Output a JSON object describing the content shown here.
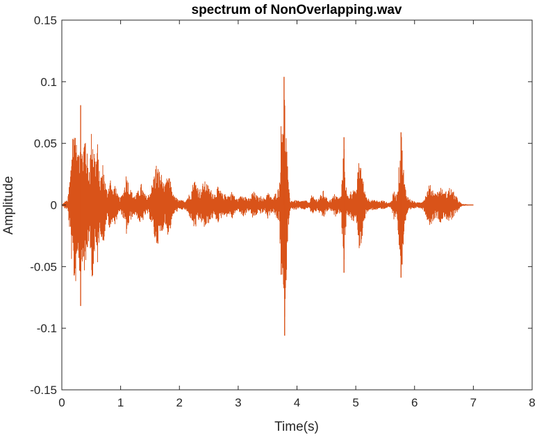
{
  "chart_data": {
    "type": "line",
    "title": "spectrum of NonOverlapping.wav",
    "xlabel": "Time(s)",
    "ylabel": "Amplitude",
    "xlim": [
      0,
      8
    ],
    "ylim": [
      -0.15,
      0.15
    ],
    "x_ticks": [
      "0",
      "1",
      "2",
      "3",
      "4",
      "5",
      "6",
      "7",
      "8"
    ],
    "y_ticks": [
      "0.15",
      "0.1",
      "0.05",
      "0",
      "-0.05",
      "-0.1",
      "-0.15"
    ],
    "x_tick_values": [
      0,
      1,
      2,
      3,
      4,
      5,
      6,
      7,
      8
    ],
    "y_tick_values": [
      0.15,
      0.1,
      0.05,
      0,
      -0.05,
      -0.1,
      -0.15
    ],
    "grid": false,
    "series": [
      {
        "color": "#D95319",
        "envelope": {
          "t": [
            0,
            0.05,
            0.1,
            0.15,
            0.18,
            0.2,
            0.22,
            0.25,
            0.28,
            0.3,
            0.32,
            0.35,
            0.38,
            0.4,
            0.42,
            0.45,
            0.48,
            0.5,
            0.52,
            0.55,
            0.58,
            0.6,
            0.62,
            0.65,
            0.68,
            0.7,
            0.72,
            0.75,
            0.78,
            0.8,
            0.82,
            0.85,
            0.88,
            0.9,
            0.95,
            1.0,
            1.05,
            1.1,
            1.15,
            1.2,
            1.25,
            1.3,
            1.35,
            1.4,
            1.45,
            1.5,
            1.55,
            1.6,
            1.65,
            1.7,
            1.75,
            1.8,
            1.85,
            1.9,
            2.0,
            2.1,
            2.2,
            2.25,
            2.3,
            2.35,
            2.4,
            2.45,
            2.5,
            2.55,
            2.6,
            2.65,
            2.7,
            2.75,
            2.8,
            2.85,
            2.9,
            2.95,
            3.0,
            3.05,
            3.1,
            3.15,
            3.2,
            3.25,
            3.3,
            3.35,
            3.4,
            3.45,
            3.5,
            3.55,
            3.6,
            3.65,
            3.7,
            3.73,
            3.76,
            3.78,
            3.8,
            3.82,
            3.85,
            3.88,
            3.9,
            3.95,
            4.0,
            4.05,
            4.1,
            4.15,
            4.2,
            4.25,
            4.3,
            4.35,
            4.4,
            4.45,
            4.5,
            4.55,
            4.6,
            4.65,
            4.7,
            4.75,
            4.78,
            4.8,
            4.82,
            4.85,
            4.9,
            4.95,
            5.0,
            5.02,
            5.05,
            5.08,
            5.1,
            5.15,
            5.2,
            5.25,
            5.3,
            5.35,
            5.4,
            5.45,
            5.5,
            5.55,
            5.6,
            5.65,
            5.7,
            5.73,
            5.76,
            5.78,
            5.8,
            5.83,
            5.86,
            5.9,
            5.95,
            6.0,
            6.05,
            6.1,
            6.15,
            6.2,
            6.25,
            6.3,
            6.35,
            6.4,
            6.45,
            6.5,
            6.55,
            6.6,
            6.65,
            6.7,
            6.75,
            6.8,
            6.9,
            7.0
          ],
          "max": [
            0.0,
            0.003,
            0.004,
            0.03,
            0.07,
            0.06,
            0.08,
            0.05,
            0.04,
            0.06,
            0.07,
            0.045,
            0.06,
            0.065,
            0.05,
            0.03,
            0.04,
            0.06,
            0.065,
            0.05,
            0.035,
            0.06,
            0.04,
            0.02,
            0.03,
            0.035,
            0.028,
            0.015,
            0.012,
            0.018,
            0.025,
            0.015,
            0.01,
            0.02,
            0.008,
            0.006,
            0.012,
            0.028,
            0.015,
            0.01,
            0.008,
            0.012,
            0.018,
            0.01,
            0.007,
            0.012,
            0.02,
            0.035,
            0.03,
            0.025,
            0.015,
            0.025,
            0.02,
            0.008,
            0.004,
            0.004,
            0.012,
            0.022,
            0.018,
            0.012,
            0.018,
            0.02,
            0.015,
            0.012,
            0.01,
            0.015,
            0.012,
            0.008,
            0.01,
            0.008,
            0.012,
            0.006,
            0.005,
            0.008,
            0.01,
            0.006,
            0.005,
            0.012,
            0.009,
            0.006,
            0.008,
            0.005,
            0.012,
            0.007,
            0.006,
            0.012,
            0.015,
            0.07,
            0.09,
            0.1,
            0.085,
            0.06,
            0.02,
            0.005,
            0.004,
            0.004,
            0.004,
            0.003,
            0.004,
            0.004,
            0.002,
            0.008,
            0.006,
            0.005,
            0.008,
            0.012,
            0.006,
            0.004,
            0.006,
            0.01,
            0.006,
            0.008,
            0.035,
            0.05,
            0.03,
            0.008,
            0.01,
            0.015,
            0.01,
            0.02,
            0.035,
            0.04,
            0.03,
            0.012,
            0.006,
            0.005,
            0.004,
            0.004,
            0.003,
            0.004,
            0.003,
            0.002,
            0.003,
            0.012,
            0.008,
            0.03,
            0.05,
            0.06,
            0.04,
            0.02,
            0.01,
            0.006,
            0.004,
            0.003,
            0.002,
            0.003,
            0.004,
            0.01,
            0.017,
            0.015,
            0.01,
            0.012,
            0.015,
            0.01,
            0.012,
            0.015,
            0.012,
            0.008,
            0.004,
            0.001,
            0.0005,
            0.0
          ],
          "min": [
            0.0,
            -0.003,
            -0.004,
            -0.03,
            -0.06,
            -0.055,
            -0.08,
            -0.05,
            -0.04,
            -0.055,
            -0.065,
            -0.045,
            -0.055,
            -0.06,
            -0.05,
            -0.03,
            -0.04,
            -0.055,
            -0.06,
            -0.05,
            -0.035,
            -0.055,
            -0.04,
            -0.02,
            -0.03,
            -0.035,
            -0.028,
            -0.015,
            -0.012,
            -0.018,
            -0.025,
            -0.015,
            -0.01,
            -0.02,
            -0.008,
            -0.006,
            -0.012,
            -0.025,
            -0.015,
            -0.01,
            -0.008,
            -0.012,
            -0.018,
            -0.01,
            -0.007,
            -0.012,
            -0.02,
            -0.035,
            -0.03,
            -0.025,
            -0.015,
            -0.025,
            -0.02,
            -0.008,
            -0.004,
            -0.004,
            -0.012,
            -0.02,
            -0.018,
            -0.012,
            -0.018,
            -0.02,
            -0.015,
            -0.012,
            -0.01,
            -0.015,
            -0.012,
            -0.008,
            -0.01,
            -0.008,
            -0.012,
            -0.006,
            -0.005,
            -0.008,
            -0.01,
            -0.006,
            -0.005,
            -0.012,
            -0.009,
            -0.006,
            -0.008,
            -0.005,
            -0.012,
            -0.007,
            -0.006,
            -0.012,
            -0.015,
            -0.065,
            -0.09,
            -0.105,
            -0.085,
            -0.06,
            -0.02,
            -0.005,
            -0.004,
            -0.004,
            -0.004,
            -0.003,
            -0.004,
            -0.004,
            -0.002,
            -0.008,
            -0.006,
            -0.005,
            -0.008,
            -0.012,
            -0.006,
            -0.004,
            -0.006,
            -0.01,
            -0.006,
            -0.008,
            -0.035,
            -0.05,
            -0.03,
            -0.008,
            -0.01,
            -0.015,
            -0.01,
            -0.02,
            -0.035,
            -0.04,
            -0.03,
            -0.012,
            -0.006,
            -0.005,
            -0.004,
            -0.004,
            -0.003,
            -0.004,
            -0.003,
            -0.002,
            -0.003,
            -0.012,
            -0.008,
            -0.03,
            -0.055,
            -0.06,
            -0.04,
            -0.02,
            -0.01,
            -0.006,
            -0.004,
            -0.003,
            -0.002,
            -0.003,
            -0.004,
            -0.01,
            -0.017,
            -0.015,
            -0.01,
            -0.012,
            -0.015,
            -0.01,
            -0.012,
            -0.015,
            -0.012,
            -0.008,
            -0.004,
            -0.001,
            -0.0005,
            0.0
          ]
        },
        "peaks": [
          {
            "t": 0.32,
            "value": 0.081
          },
          {
            "t": 0.32,
            "value": -0.082
          },
          {
            "t": 3.78,
            "value": 0.104
          },
          {
            "t": 3.79,
            "value": -0.106
          },
          {
            "t": 5.77,
            "value": 0.059
          },
          {
            "t": 5.77,
            "value": -0.059
          },
          {
            "t": 4.8,
            "value": 0.055
          },
          {
            "t": 4.8,
            "value": -0.055
          }
        ]
      }
    ]
  }
}
